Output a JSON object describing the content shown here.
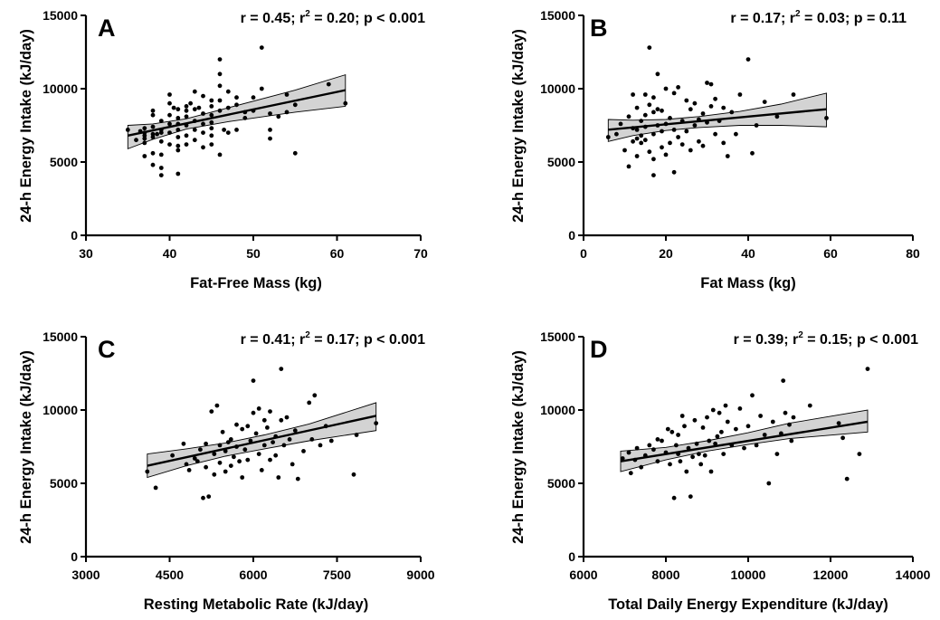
{
  "chart_data": [
    {
      "type": "scatter",
      "panel": "A",
      "stats": {
        "r": "r = 0.45; r",
        "sup": "2",
        "rest": " = 0.20; p < 0.001"
      },
      "xlabel": "Fat-Free Mass  (kg)",
      "ylabel": "24-h Energy Intake (kJ/day)",
      "xlim": [
        30,
        70
      ],
      "ylim": [
        0,
        15000
      ],
      "xticks": [
        "30",
        "40",
        "50",
        "60",
        "70"
      ],
      "yticks": [
        "0",
        "5000",
        "10000",
        "15000"
      ],
      "regression": {
        "x0": 35,
        "y0": 6800,
        "x1": 61,
        "y1": 9900
      },
      "ci": {
        "lower": [
          [
            35,
            5900
          ],
          [
            38,
            6550
          ],
          [
            42,
            7250
          ],
          [
            47,
            7750
          ],
          [
            55,
            8400
          ],
          [
            61,
            8800
          ]
        ],
        "upper": [
          [
            35,
            7500
          ],
          [
            38,
            7600
          ],
          [
            42,
            7950
          ],
          [
            47,
            8700
          ],
          [
            55,
            9900
          ],
          [
            61,
            10950
          ]
        ]
      },
      "x": [
        35,
        36,
        36.5,
        37,
        37,
        37,
        37,
        37,
        37,
        38,
        38,
        38,
        38,
        38,
        38,
        38,
        38.5,
        39,
        39,
        39,
        39,
        39,
        39,
        39,
        40,
        40,
        40,
        40,
        40,
        40,
        40.5,
        41,
        41,
        41,
        41,
        41,
        41,
        41,
        41,
        42,
        42,
        42,
        42,
        42,
        42,
        42.5,
        43,
        43,
        43,
        43,
        43,
        43.5,
        44,
        44,
        44,
        44,
        44,
        45,
        45,
        45,
        45,
        45,
        45,
        45,
        46,
        46,
        46,
        46,
        46,
        46,
        46.5,
        47,
        47,
        47,
        48,
        48,
        48,
        49,
        49,
        50,
        50,
        51,
        51,
        52,
        52,
        52,
        53,
        54,
        54,
        55,
        55,
        59,
        61
      ],
      "y": [
        7200,
        6500,
        7100,
        6300,
        6600,
        6800,
        7000,
        7300,
        5400,
        8500,
        8200,
        7400,
        6900,
        6700,
        5600,
        4800,
        6900,
        7800,
        7000,
        6400,
        5500,
        4600,
        4100,
        7200,
        9600,
        9000,
        8200,
        7600,
        7000,
        6200,
        8700,
        8600,
        8000,
        7600,
        7200,
        6700,
        6100,
        5800,
        4200,
        8800,
        8500,
        8100,
        7500,
        6800,
        6200,
        9000,
        9800,
        8600,
        7800,
        7200,
        6500,
        8700,
        9500,
        8300,
        7600,
        7000,
        6000,
        9200,
        8800,
        8200,
        7700,
        7300,
        6800,
        6200,
        12000,
        11000,
        10200,
        9200,
        8500,
        5500,
        7200,
        9800,
        8700,
        7000,
        9400,
        8900,
        7200,
        8400,
        8000,
        9400,
        8500,
        12800,
        10000,
        8300,
        7200,
        6600,
        8100,
        9600,
        8400,
        8900,
        5600,
        10300,
        9000
      ]
    },
    {
      "type": "scatter",
      "panel": "B",
      "stats": {
        "r": "r = 0.17; r",
        "sup": "2",
        "rest": " = 0.03; p = 0.11"
      },
      "xlabel": "Fat Mass (kg)",
      "ylabel": "24-h Energy Intake (kJ/day)",
      "xlim": [
        0,
        80
      ],
      "ylim": [
        0,
        15000
      ],
      "xticks": [
        "0",
        "20",
        "40",
        "60",
        "80"
      ],
      "yticks": [
        "0",
        "5000",
        "10000",
        "15000"
      ],
      "regression": {
        "x0": 6,
        "y0": 7200,
        "x1": 59,
        "y1": 8600
      },
      "ci": {
        "lower": [
          [
            6,
            6400
          ],
          [
            12,
            6800
          ],
          [
            20,
            7150
          ],
          [
            28,
            7350
          ],
          [
            38,
            7500
          ],
          [
            48,
            7500
          ],
          [
            59,
            7400
          ]
        ],
        "upper": [
          [
            6,
            7900
          ],
          [
            12,
            7850
          ],
          [
            20,
            7900
          ],
          [
            28,
            8100
          ],
          [
            38,
            8450
          ],
          [
            48,
            8950
          ],
          [
            59,
            9700
          ]
        ]
      },
      "x": [
        6,
        8,
        9,
        10,
        11,
        11,
        12,
        12,
        12,
        13,
        13,
        13,
        13,
        14,
        14,
        14,
        15,
        15,
        15,
        15,
        16,
        16,
        16,
        17,
        17,
        17,
        17,
        17,
        18,
        18,
        18,
        19,
        19,
        19,
        20,
        20,
        20,
        21,
        21,
        22,
        22,
        22,
        23,
        23,
        24,
        24,
        25,
        25,
        26,
        26,
        27,
        27,
        28,
        28,
        29,
        29,
        30,
        30,
        31,
        31,
        32,
        32,
        33,
        34,
        34,
        35,
        36,
        37,
        38,
        40,
        41,
        42,
        44,
        47,
        51,
        59
      ],
      "y": [
        6700,
        6900,
        7600,
        5800,
        8100,
        4700,
        9600,
        7300,
        6400,
        8700,
        7200,
        6600,
        5400,
        7800,
        6800,
        6300,
        9600,
        8200,
        7400,
        6500,
        12800,
        8900,
        5700,
        9400,
        8400,
        6900,
        5200,
        4100,
        11000,
        8600,
        7500,
        8500,
        7100,
        6000,
        10000,
        7600,
        5500,
        8000,
        6300,
        9700,
        7200,
        4300,
        10100,
        6700,
        7800,
        6200,
        9200,
        7100,
        8600,
        5800,
        9000,
        7500,
        7900,
        6400,
        8300,
        6100,
        10400,
        7700,
        10300,
        8800,
        9300,
        6900,
        7800,
        8700,
        6300,
        5400,
        8400,
        6900,
        9600,
        12000,
        5600,
        7500,
        9100,
        8100,
        9600,
        8000
      ]
    },
    {
      "type": "scatter",
      "panel": "C",
      "stats": {
        "r": "r = 0.41; r",
        "sup": "2",
        "rest": " = 0.17; p < 0.001"
      },
      "xlabel": "Resting Metabolic Rate (kJ/day)",
      "ylabel": "24-h Energy Intake (kJ/day)",
      "xlim": [
        3000,
        9000
      ],
      "ylim": [
        0,
        15000
      ],
      "xticks": [
        "3000",
        "4500",
        "6000",
        "7500",
        "9000"
      ],
      "yticks": [
        "0",
        "5000",
        "10000",
        "15000"
      ],
      "regression": {
        "x0": 4100,
        "y0": 6200,
        "x1": 8200,
        "y1": 9600
      },
      "ci": {
        "lower": [
          [
            4100,
            5400
          ],
          [
            4800,
            6200
          ],
          [
            5500,
            6850
          ],
          [
            6200,
            7350
          ],
          [
            7000,
            7900
          ],
          [
            8200,
            8600
          ]
        ],
        "upper": [
          [
            4100,
            7000
          ],
          [
            4800,
            7350
          ],
          [
            5500,
            7750
          ],
          [
            6200,
            8300
          ],
          [
            7000,
            9050
          ],
          [
            8200,
            10500
          ]
        ]
      },
      "x": [
        4100,
        4250,
        4550,
        4750,
        4800,
        4850,
        4950,
        5000,
        5050,
        5100,
        5150,
        5150,
        5200,
        5250,
        5300,
        5300,
        5350,
        5400,
        5400,
        5450,
        5500,
        5500,
        5550,
        5600,
        5600,
        5650,
        5700,
        5700,
        5750,
        5800,
        5800,
        5850,
        5900,
        5900,
        5950,
        6000,
        6000,
        6050,
        6100,
        6100,
        6150,
        6200,
        6200,
        6250,
        6300,
        6300,
        6350,
        6400,
        6400,
        6450,
        6500,
        6500,
        6550,
        6600,
        6650,
        6700,
        6750,
        6800,
        6900,
        7000,
        7050,
        7100,
        7200,
        7300,
        7400,
        7800,
        7850,
        8200
      ],
      "y": [
        5800,
        4700,
        6900,
        7700,
        6300,
        5900,
        6700,
        6500,
        7300,
        4000,
        7700,
        6100,
        4100,
        9900,
        7000,
        5600,
        10300,
        7600,
        6400,
        8500,
        7200,
        5800,
        7800,
        6200,
        8000,
        6800,
        7500,
        9000,
        6500,
        8700,
        5400,
        7300,
        8900,
        6600,
        7900,
        12000,
        9800,
        8400,
        7000,
        10100,
        5900,
        9300,
        7600,
        8800,
        6600,
        9900,
        7800,
        8200,
        6900,
        5400,
        12800,
        9300,
        7600,
        9500,
        8000,
        6300,
        8600,
        5300,
        7200,
        10500,
        8000,
        11000,
        7600,
        8900,
        7900,
        5600,
        8300,
        9100
      ]
    },
    {
      "type": "scatter",
      "panel": "D",
      "stats": {
        "r": "r = 0.39; r",
        "sup": "2",
        "rest": " = 0.15; p < 0.001"
      },
      "xlabel": "Total Daily Energy Expenditure (kJ/day)",
      "ylabel": "24-h Energy Intake (kJ/day)",
      "xlim": [
        6000,
        14000
      ],
      "ylim": [
        0,
        15000
      ],
      "xticks": [
        "6000",
        "8000",
        "10000",
        "12000",
        "14000"
      ],
      "yticks": [
        "0",
        "5000",
        "10000",
        "15000"
      ],
      "regression": {
        "x0": 6900,
        "y0": 6500,
        "x1": 12900,
        "y1": 9200
      },
      "ci": {
        "lower": [
          [
            6900,
            5800
          ],
          [
            8000,
            6600
          ],
          [
            9000,
            7200
          ],
          [
            10000,
            7650
          ],
          [
            11000,
            8050
          ],
          [
            12900,
            8500
          ]
        ],
        "upper": [
          [
            6900,
            7200
          ],
          [
            8000,
            7450
          ],
          [
            9000,
            7900
          ],
          [
            10000,
            8450
          ],
          [
            11000,
            9100
          ],
          [
            12900,
            10000
          ]
        ]
      },
      "x": [
        6950,
        7100,
        7150,
        7250,
        7300,
        7400,
        7500,
        7600,
        7700,
        7800,
        7800,
        7900,
        8000,
        8050,
        8100,
        8150,
        8200,
        8250,
        8300,
        8300,
        8350,
        8400,
        8450,
        8500,
        8550,
        8600,
        8650,
        8700,
        8750,
        8800,
        8850,
        8900,
        8950,
        9000,
        9050,
        9100,
        9150,
        9200,
        9250,
        9300,
        9350,
        9400,
        9450,
        9500,
        9600,
        9700,
        9800,
        9900,
        10000,
        10100,
        10200,
        10300,
        10400,
        10500,
        10600,
        10700,
        10800,
        10850,
        10900,
        11000,
        11050,
        11100,
        11500,
        12200,
        12300,
        12400,
        12700,
        12900
      ],
      "y": [
        6700,
        7100,
        5700,
        6600,
        7400,
        6100,
        6900,
        7600,
        7300,
        6500,
        8000,
        7900,
        7100,
        8700,
        6300,
        8500,
        4000,
        7600,
        8300,
        7000,
        6500,
        9600,
        8900,
        5800,
        7400,
        4100,
        6800,
        9300,
        7700,
        7000,
        6300,
        8800,
        6900,
        9500,
        7900,
        5800,
        10000,
        7700,
        8200,
        9800,
        8500,
        7000,
        10300,
        9200,
        7600,
        8700,
        10100,
        7400,
        8900,
        11000,
        7600,
        9600,
        8300,
        5000,
        9200,
        7000,
        8400,
        12000,
        9800,
        9000,
        7900,
        9500,
        10300,
        9100,
        8100,
        5300,
        7000,
        12800
      ]
    }
  ]
}
